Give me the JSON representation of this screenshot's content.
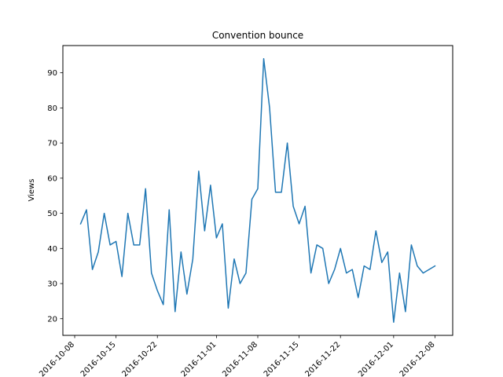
{
  "chart_data": {
    "type": "line",
    "title": "Convention bounce",
    "xlabel": "",
    "ylabel": "Views",
    "grid": false,
    "legend": "none",
    "line_color": "#1f77b4",
    "ylim": [
      15.25,
      97.75
    ],
    "xlim": [
      "2016-10-06",
      "2016-12-11"
    ],
    "yticks": [
      20,
      30,
      40,
      50,
      60,
      70,
      80,
      90
    ],
    "xticks": [
      {
        "date": "2016-10-08",
        "label": "2016-10-08"
      },
      {
        "date": "2016-10-15",
        "label": "2016-10-15"
      },
      {
        "date": "2016-10-22",
        "label": "2016-10-22"
      },
      {
        "date": "2016-11-01",
        "label": "2016-11-01"
      },
      {
        "date": "2016-11-08",
        "label": "2016-11-08"
      },
      {
        "date": "2016-11-15",
        "label": "2016-11-15"
      },
      {
        "date": "2016-11-22",
        "label": "2016-11-22"
      },
      {
        "date": "2016-12-01",
        "label": "2016-12-01"
      },
      {
        "date": "2016-12-08",
        "label": "2016-12-08"
      }
    ],
    "series": [
      {
        "x": [
          "2016-10-09",
          "2016-10-10",
          "2016-10-11",
          "2016-10-12",
          "2016-10-13",
          "2016-10-14",
          "2016-10-15",
          "2016-10-16",
          "2016-10-17",
          "2016-10-18",
          "2016-10-19",
          "2016-10-20",
          "2016-10-21",
          "2016-10-22",
          "2016-10-23",
          "2016-10-24",
          "2016-10-25",
          "2016-10-26",
          "2016-10-27",
          "2016-10-28",
          "2016-10-29",
          "2016-10-30",
          "2016-10-31",
          "2016-11-01",
          "2016-11-02",
          "2016-11-03",
          "2016-11-04",
          "2016-11-05",
          "2016-11-06",
          "2016-11-07",
          "2016-11-08",
          "2016-11-09",
          "2016-11-10",
          "2016-11-11",
          "2016-11-12",
          "2016-11-13",
          "2016-11-14",
          "2016-11-15",
          "2016-11-16",
          "2016-11-17",
          "2016-11-18",
          "2016-11-19",
          "2016-11-20",
          "2016-11-21",
          "2016-11-22",
          "2016-11-23",
          "2016-11-24",
          "2016-11-25",
          "2016-11-26",
          "2016-11-27",
          "2016-11-28",
          "2016-11-29",
          "2016-11-30",
          "2016-12-01",
          "2016-12-02",
          "2016-12-03",
          "2016-12-04",
          "2016-12-05",
          "2016-12-06",
          "2016-12-07",
          "2016-12-08"
        ],
        "values": [
          47,
          51,
          34,
          39,
          50,
          41,
          42,
          32,
          50,
          41,
          41,
          57,
          33,
          28,
          24,
          51,
          22,
          39,
          27,
          37,
          62,
          45,
          58,
          43,
          47,
          23,
          37,
          30,
          33,
          54,
          57,
          94,
          80,
          56,
          56,
          70,
          52,
          47,
          52,
          33,
          41,
          40,
          30,
          34,
          40,
          33,
          34,
          26,
          35,
          34,
          45,
          36,
          39,
          19,
          33,
          22,
          41,
          35,
          33,
          34,
          35
        ]
      }
    ]
  }
}
